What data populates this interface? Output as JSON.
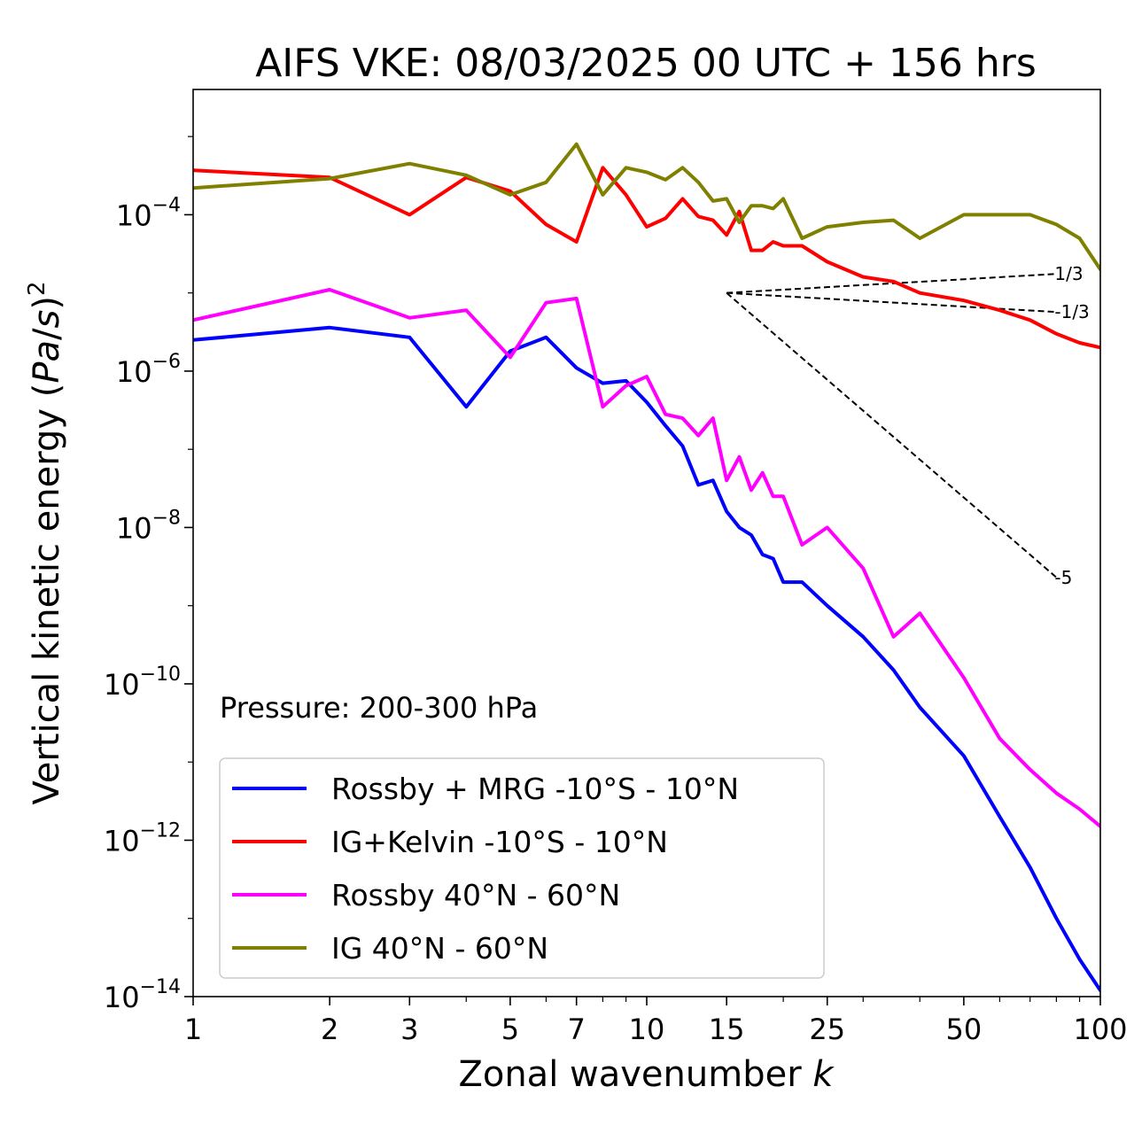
{
  "chart_data": {
    "type": "line",
    "title": "AIFS VKE: 08/03/2025 00 UTC + 156 hrs",
    "xlabel": "Zonal wavenumber k",
    "ylabel": "Vertical kinetic energy (Pa/s)^2",
    "x_scale": "log",
    "y_scale": "log",
    "xlim": [
      1,
      100
    ],
    "ylim": [
      1e-14,
      0.004
    ],
    "x_ticks": [
      1,
      2,
      3,
      5,
      7,
      10,
      15,
      25,
      50,
      100
    ],
    "y_ticks": [
      {
        "value": 1e-14,
        "base": "10",
        "exp": "−14"
      },
      {
        "value": 1e-12,
        "base": "10",
        "exp": "−12"
      },
      {
        "value": 1e-10,
        "base": "10",
        "exp": "−10"
      },
      {
        "value": 1e-08,
        "base": "10",
        "exp": "−8"
      },
      {
        "value": 1e-06,
        "base": "10",
        "exp": "−6"
      },
      {
        "value": 0.0001,
        "base": "10",
        "exp": "−4"
      }
    ],
    "annotation": "Pressure: 200-300 hPa",
    "legend_position": "lower-left",
    "series": [
      {
        "name": "Rossby + MRG -10°S - 10°N",
        "color": "#0000ff",
        "x": [
          1,
          2,
          3,
          4,
          5,
          6,
          7,
          8,
          9,
          10,
          11,
          12,
          13,
          14,
          15,
          16,
          17,
          18,
          19,
          20,
          22,
          25,
          30,
          35,
          40,
          50,
          60,
          70,
          80,
          90,
          100
        ],
        "y": [
          2.5e-06,
          3.6e-06,
          2.7e-06,
          3.5e-07,
          1.8e-06,
          2.7e-06,
          1.1e-06,
          7e-07,
          7.5e-07,
          4e-07,
          2e-07,
          1.1e-07,
          3.5e-08,
          4e-08,
          1.6e-08,
          1e-08,
          8e-09,
          4.5e-09,
          4e-09,
          2e-09,
          2e-09,
          1e-09,
          4e-10,
          1.5e-10,
          5e-11,
          1.2e-11,
          2e-12,
          4.5e-13,
          1e-13,
          3e-14,
          1.2e-14
        ]
      },
      {
        "name": "IG+Kelvin -10°S - 10°N",
        "color": "#ff0000",
        "x": [
          1,
          2,
          3,
          4,
          5,
          6,
          7,
          8,
          9,
          10,
          11,
          12,
          13,
          14,
          15,
          16,
          17,
          18,
          19,
          20,
          22,
          25,
          30,
          35,
          40,
          50,
          60,
          70,
          80,
          90,
          100
        ],
        "y": [
          0.00037,
          0.0003,
          0.0001,
          0.0003,
          0.0002,
          7.5e-05,
          4.5e-05,
          0.0004,
          0.00018,
          7e-05,
          9e-05,
          0.00016,
          9.5e-05,
          8.5e-05,
          5.5e-05,
          0.00011,
          3.5e-05,
          3.5e-05,
          4.5e-05,
          4e-05,
          4e-05,
          2.5e-05,
          1.6e-05,
          1.4e-05,
          1e-05,
          8e-06,
          6e-06,
          4.5e-06,
          3e-06,
          2.3e-06,
          2e-06
        ]
      },
      {
        "name": "Rossby 40°N - 60°N",
        "color": "#ff00ff",
        "x": [
          1,
          2,
          3,
          4,
          5,
          6,
          7,
          8,
          9,
          10,
          11,
          12,
          13,
          14,
          15,
          16,
          17,
          18,
          19,
          20,
          22,
          25,
          30,
          35,
          40,
          50,
          60,
          70,
          80,
          90,
          100
        ],
        "y": [
          4.5e-06,
          1.1e-05,
          4.8e-06,
          6e-06,
          1.5e-06,
          7.5e-06,
          8.5e-06,
          3.5e-07,
          6.5e-07,
          8.5e-07,
          2.8e-07,
          2.5e-07,
          1.5e-07,
          2.5e-07,
          4e-08,
          8e-08,
          3e-08,
          5e-08,
          2.5e-08,
          2.5e-08,
          6e-09,
          1e-08,
          3e-09,
          4e-10,
          8e-10,
          1.2e-10,
          2e-11,
          8e-12,
          4e-12,
          2.5e-12,
          1.5e-12
        ]
      },
      {
        "name": "IG 40°N - 60°N",
        "color": "#808000",
        "x": [
          1,
          2,
          3,
          4,
          5,
          6,
          7,
          8,
          9,
          10,
          11,
          12,
          13,
          14,
          15,
          16,
          17,
          18,
          19,
          20,
          22,
          25,
          30,
          35,
          40,
          50,
          60,
          70,
          80,
          90,
          100
        ],
        "y": [
          0.00022,
          0.00029,
          0.00045,
          0.00032,
          0.00018,
          0.00026,
          0.0008,
          0.00018,
          0.0004,
          0.00035,
          0.00028,
          0.0004,
          0.00026,
          0.00015,
          0.00016,
          8e-05,
          0.00013,
          0.00013,
          0.00012,
          0.00016,
          5e-05,
          7e-05,
          8e-05,
          8.5e-05,
          5e-05,
          0.0001,
          0.0001,
          0.0001,
          7.5e-05,
          5e-05,
          2e-05
        ]
      }
    ],
    "reference_lines": [
      {
        "label": "1/3",
        "x": [
          15,
          80
        ],
        "y": [
          1e-05,
          1.75e-05
        ]
      },
      {
        "label": "-1/3",
        "x": [
          15,
          80
        ],
        "y": [
          1e-05,
          5.7e-06
        ]
      },
      {
        "label": "-5",
        "x": [
          15,
          80
        ],
        "y": [
          1e-05,
          2.3e-09
        ]
      }
    ]
  }
}
